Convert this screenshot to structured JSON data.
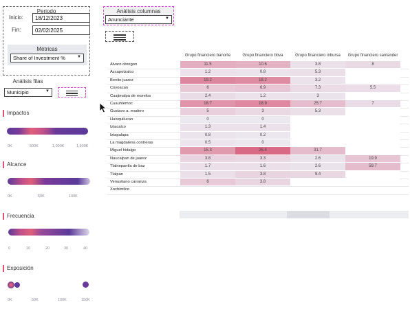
{
  "periodo": {
    "title": "Periodo",
    "inicio_label": "Inicio:",
    "inicio_value": "18/12/2023",
    "fin_label": "Fin:",
    "fin_value": "02/02/2025"
  },
  "metricas": {
    "title": "Métricas",
    "selected": "Share of Investment %"
  },
  "analisis_columnas": {
    "title": "Análisis columnas",
    "selected": "Anunciante"
  },
  "analisis_filas": {
    "title": "Análisis filas",
    "selected": "Municipio"
  },
  "measures": [
    {
      "title": "Impactos",
      "ticks": [
        "0K",
        "500K",
        "1,000K",
        "1,500K"
      ]
    },
    {
      "title": "Alcance",
      "ticks": [
        "0K",
        "50K",
        "100K"
      ]
    },
    {
      "title": "Frecuencia",
      "ticks": [
        "0",
        "10",
        "20",
        "30",
        "40"
      ]
    },
    {
      "title": "Exposición",
      "ticks": [
        "0K",
        "50K",
        "100K",
        "150K"
      ]
    }
  ],
  "table": {
    "columns": [
      "Grupo financiero banorte",
      "Grupo financiero bbva",
      "Grupo financiero inbursa",
      "Grupo financiero santander"
    ],
    "rows": [
      {
        "label": "Alvaro obregon",
        "values": [
          "11.5",
          "10.6",
          "3.8",
          "8"
        ]
      },
      {
        "label": "Azcapotzalco",
        "values": [
          "1.2",
          "0.8",
          "5.3",
          ""
        ]
      },
      {
        "label": "Benito juarez",
        "values": [
          "19.2",
          "18.2",
          "3.2",
          ""
        ]
      },
      {
        "label": "Coyoacan",
        "values": [
          "6",
          "6.9",
          "7.3",
          "5.5"
        ]
      },
      {
        "label": "Cuajimalpa de morelos",
        "values": [
          "2.4",
          "1.2",
          "3",
          ""
        ]
      },
      {
        "label": "Cuauhtemoc",
        "values": [
          "16.7",
          "18.9",
          "25.7",
          "7"
        ]
      },
      {
        "label": "Gustavo a. madero",
        "values": [
          "5",
          "3",
          "5.3",
          ""
        ]
      },
      {
        "label": "Huixquilucan",
        "values": [
          "0",
          "0",
          "",
          ""
        ]
      },
      {
        "label": "Iztacalco",
        "values": [
          "1.3",
          "1.4",
          "",
          ""
        ]
      },
      {
        "label": "Iztapalapa",
        "values": [
          "0.8",
          "0.2",
          "",
          ""
        ]
      },
      {
        "label": "La magdalena contreras",
        "values": [
          "0.5",
          "0",
          "",
          ""
        ]
      },
      {
        "label": "Miguel hidalgo",
        "values": [
          "15.3",
          "26.4",
          "31.7",
          ""
        ]
      },
      {
        "label": "Naucalpan de juarez",
        "values": [
          "3.8",
          "3.3",
          "2.6",
          "19.9"
        ]
      },
      {
        "label": "Tlalnepantla de baz",
        "values": [
          "1.7",
          "1.6",
          "2.6",
          "59.7"
        ]
      },
      {
        "label": "Tlalpan",
        "values": [
          "1.5",
          "3.8",
          "9.4",
          ""
        ]
      },
      {
        "label": "Venustiano carranza",
        "values": [
          "6",
          "3.8",
          "",
          ""
        ]
      },
      {
        "label": "Xochimilco",
        "values": [
          "",
          "",
          "",
          ""
        ]
      }
    ]
  },
  "colors": {
    "accent": "#e05070",
    "heat_high": "#d96a85",
    "heat_mid": "#e8aab8",
    "heat_low": "#ece8f0",
    "neutral": "#eef0f4",
    "blob_purple": "#5a3a9a",
    "blob_pink": "#e0607a"
  }
}
